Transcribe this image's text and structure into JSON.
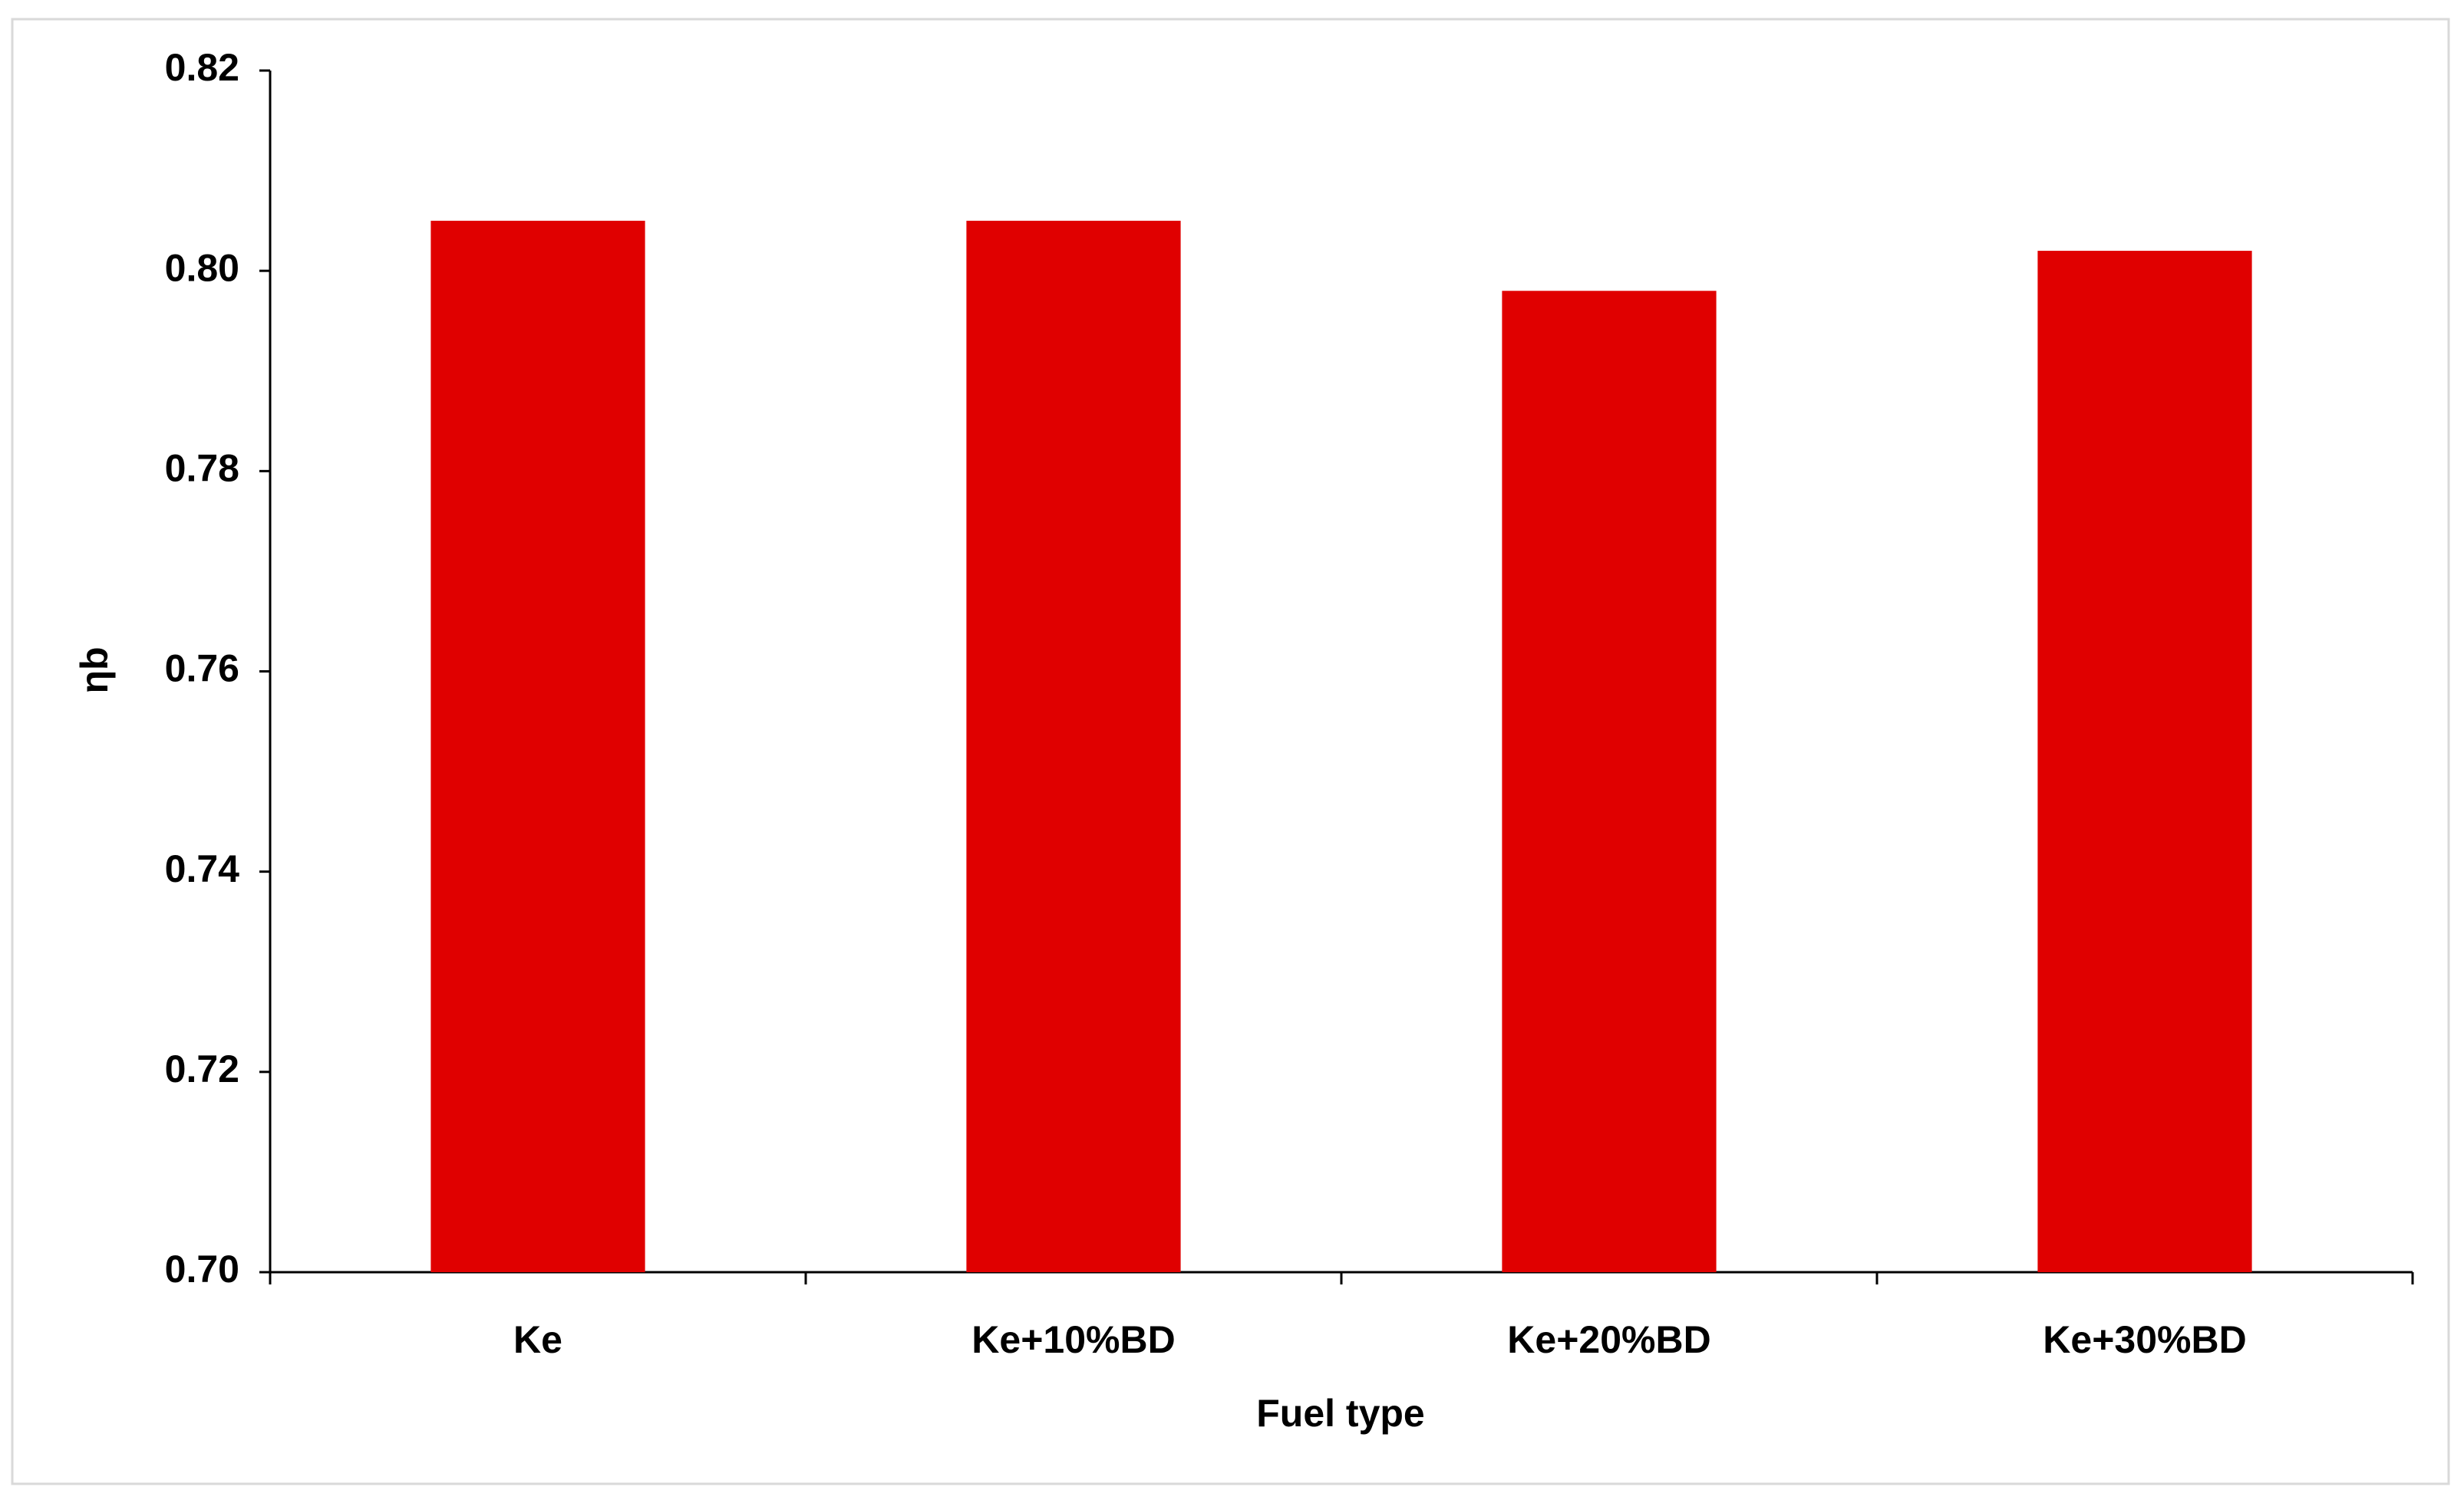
{
  "chart_data": {
    "type": "bar",
    "x_label": "Fuel type",
    "y_label": "ηb",
    "categories": [
      "Ke",
      "Ke+10%BD",
      "Ke+20%BD",
      "Ke+30%BD"
    ],
    "values": [
      0.805,
      0.805,
      0.798,
      0.802
    ],
    "color": "#e00000",
    "ylim": [
      0.7,
      0.82
    ],
    "yticks": [
      {
        "value": 0.7,
        "label": "0.70"
      },
      0.72,
      0.74,
      0.76,
      0.78,
      {
        "value": 0.8,
        "label": "0.80"
      },
      0.82
    ],
    "grid": false
  }
}
